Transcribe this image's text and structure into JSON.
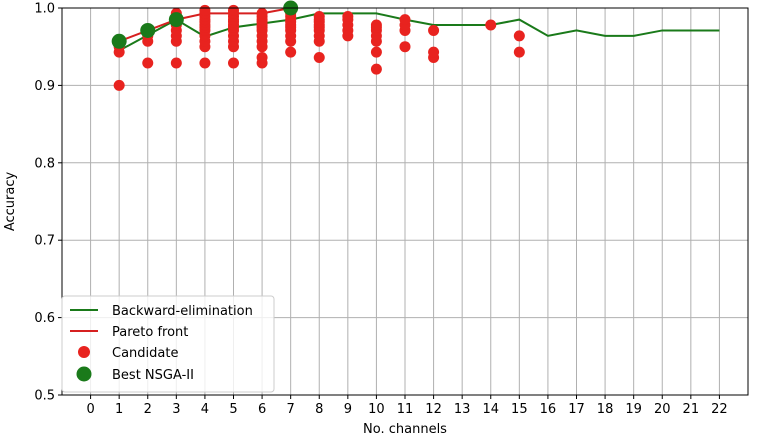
{
  "chart_data": {
    "type": "scatter",
    "xlabel": "No. channels",
    "ylabel": "Accuracy",
    "xlim": [
      -1,
      23
    ],
    "ylim": [
      0.5,
      1.0
    ],
    "xticks": [
      0,
      1,
      2,
      3,
      4,
      5,
      6,
      7,
      8,
      9,
      10,
      11,
      12,
      13,
      14,
      15,
      16,
      17,
      18,
      19,
      20,
      21,
      22
    ],
    "yticks": [
      0.5,
      0.6,
      0.7,
      0.8,
      0.9,
      1.0
    ],
    "ytick_labels": [
      "0.5",
      "0.6",
      "0.7",
      "0.8",
      "0.9",
      "1.0"
    ],
    "grid": true,
    "legend_position": "lower-left",
    "series": [
      {
        "name": "Backward-elimination",
        "kind": "line",
        "color": "#1a7a1a",
        "x": [
          1,
          2,
          3,
          4,
          5,
          6,
          7,
          8,
          9,
          10,
          11,
          12,
          13,
          14,
          15,
          16,
          17,
          18,
          19,
          20,
          21,
          22
        ],
        "y": [
          0.945,
          0.965,
          0.985,
          0.963,
          0.975,
          0.98,
          0.985,
          0.993,
          0.993,
          0.993,
          0.985,
          0.978,
          0.978,
          0.978,
          0.985,
          0.964,
          0.971,
          0.964,
          0.964,
          0.971,
          0.971,
          0.971
        ]
      },
      {
        "name": "Pareto front",
        "kind": "line",
        "color": "#d62020",
        "x": [
          1,
          2,
          3,
          4,
          5,
          6,
          7
        ],
        "y": [
          0.957,
          0.971,
          0.985,
          0.993,
          0.993,
          0.993,
          1.0
        ]
      },
      {
        "name": "Candidate",
        "kind": "scatter",
        "color": "#e8231f",
        "x": [
          1,
          1,
          1,
          1,
          2,
          2,
          2,
          2,
          3,
          3,
          3,
          3,
          3,
          3,
          3,
          4,
          4,
          4,
          4,
          4,
          4,
          4,
          4,
          4,
          4,
          4,
          4,
          5,
          5,
          5,
          5,
          5,
          5,
          5,
          5,
          5,
          5,
          5,
          5,
          6,
          6,
          6,
          6,
          6,
          6,
          6,
          6,
          6,
          6,
          6,
          6,
          7,
          7,
          7,
          7,
          7,
          7,
          7,
          7,
          7,
          7,
          7,
          8,
          8,
          8,
          8,
          8,
          8,
          8,
          8,
          8,
          9,
          9,
          9,
          9,
          9,
          10,
          10,
          10,
          10,
          10,
          10,
          10,
          11,
          11,
          11,
          11,
          12,
          12,
          12,
          14,
          15,
          15
        ],
        "y": [
          0.9,
          0.943,
          0.95,
          0.957,
          0.929,
          0.957,
          0.964,
          0.971,
          0.929,
          0.957,
          0.964,
          0.971,
          0.978,
          0.985,
          0.993,
          0.929,
          0.95,
          0.957,
          0.964,
          0.971,
          0.975,
          0.978,
          0.982,
          0.985,
          0.989,
          0.993,
          0.997,
          0.929,
          0.95,
          0.957,
          0.964,
          0.971,
          0.975,
          0.978,
          0.982,
          0.985,
          0.989,
          0.993,
          0.997,
          0.929,
          0.936,
          0.95,
          0.957,
          0.964,
          0.971,
          0.975,
          0.978,
          0.982,
          0.985,
          0.989,
          0.993,
          0.943,
          0.957,
          0.964,
          0.971,
          0.975,
          0.978,
          0.982,
          0.985,
          0.989,
          0.993,
          0.997,
          0.936,
          0.957,
          0.964,
          0.971,
          0.975,
          0.978,
          0.982,
          0.985,
          0.989,
          0.964,
          0.971,
          0.978,
          0.985,
          0.989,
          0.921,
          0.943,
          0.957,
          0.964,
          0.971,
          0.975,
          0.978,
          0.95,
          0.971,
          0.978,
          0.985,
          0.936,
          0.943,
          0.971,
          0.978,
          0.943,
          0.964
        ]
      },
      {
        "name": "Best NSGA-II",
        "kind": "scatter",
        "color": "#1a7a1a",
        "x": [
          1,
          2,
          3,
          7
        ],
        "y": [
          0.957,
          0.971,
          0.985,
          1.0
        ]
      }
    ]
  }
}
